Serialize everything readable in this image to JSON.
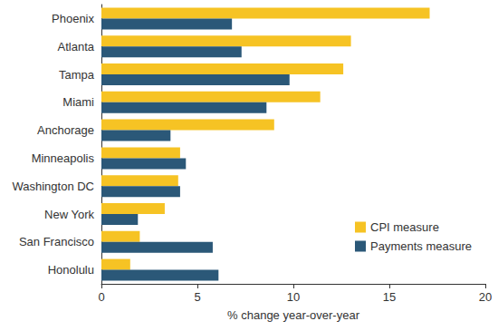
{
  "chart_data": {
    "type": "bar",
    "orientation": "horizontal",
    "xlabel": "% change year-over-year",
    "categories": [
      "Phoenix",
      "Atlanta",
      "Tampa",
      "Miami",
      "Anchorage",
      "Minneapolis",
      "Washington DC",
      "New York",
      "San Francisco",
      "Honolulu"
    ],
    "series": [
      {
        "name": "CPI measure",
        "color": "#f6c324",
        "values": [
          17.1,
          13.0,
          12.6,
          11.4,
          9.0,
          4.1,
          4.0,
          3.3,
          2.0,
          1.5
        ]
      },
      {
        "name": "Payments measure",
        "color": "#2b5878",
        "values": [
          6.8,
          7.3,
          9.8,
          8.6,
          3.6,
          4.4,
          4.1,
          1.9,
          5.8,
          6.1
        ]
      }
    ],
    "xlim": [
      0,
      20
    ],
    "xticks": [
      0,
      5,
      10,
      15,
      20
    ],
    "grid": false,
    "legend": "lower right"
  }
}
